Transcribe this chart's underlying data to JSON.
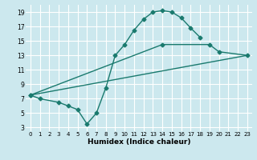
{
  "title": "",
  "xlabel": "Humidex (Indice chaleur)",
  "bg_color": "#cce8ee",
  "grid_color": "#ffffff",
  "line_color": "#1a7a6e",
  "xlim": [
    -0.5,
    23.5
  ],
  "ylim": [
    2.5,
    20.0
  ],
  "xticks": [
    0,
    1,
    2,
    3,
    4,
    5,
    6,
    7,
    8,
    9,
    10,
    11,
    12,
    13,
    14,
    15,
    16,
    17,
    18,
    19,
    20,
    21,
    22,
    23
  ],
  "yticks": [
    3,
    5,
    7,
    9,
    11,
    13,
    15,
    17,
    19
  ],
  "line1_x": [
    0,
    1,
    3,
    4,
    5,
    6,
    7,
    8,
    9,
    10,
    11,
    12,
    13,
    14,
    15,
    16,
    17,
    18
  ],
  "line1_y": [
    7.5,
    7.0,
    6.5,
    6.0,
    5.5,
    3.5,
    5.0,
    8.5,
    13.0,
    14.5,
    16.5,
    18.0,
    19.0,
    19.2,
    19.0,
    18.2,
    16.8,
    15.5
  ],
  "line2_x": [
    0,
    14,
    19,
    20,
    23
  ],
  "line2_y": [
    7.5,
    14.5,
    14.5,
    13.5,
    13.0
  ],
  "line3_x": [
    0,
    23
  ],
  "line3_y": [
    7.5,
    13.0
  ],
  "marker": "D",
  "markersize": 2.5,
  "linewidth": 1.0
}
